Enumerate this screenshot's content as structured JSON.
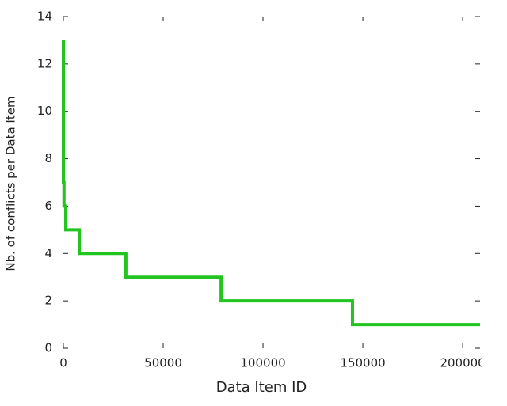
{
  "chart_data": {
    "type": "line",
    "step": "pre",
    "xlabel": "Data Item ID",
    "ylabel": "Nb. of conflicts per Data Item",
    "series": [
      {
        "name": null,
        "color": "#22c41e",
        "x": [
          0,
          300,
          1200,
          8000,
          31300,
          79000,
          144800,
          208700
        ],
        "values": [
          13,
          7,
          6,
          5,
          4,
          3,
          2,
          1
        ]
      }
    ],
    "xlim": [
      0,
      208700
    ],
    "xticks": [
      0,
      50000,
      100000,
      150000,
      200000
    ],
    "ylim": [
      0,
      14
    ],
    "yticks": [
      0,
      2,
      4,
      6,
      8,
      10,
      12,
      14
    ],
    "mirror_ticks": true
  }
}
